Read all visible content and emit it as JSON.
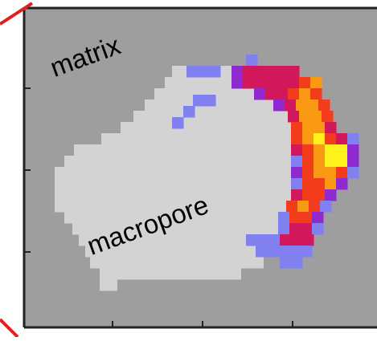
{
  "labels": {
    "matrix": "matrix",
    "macropore": "macropore"
  },
  "colors": {
    "background_region": "#9e9e9e",
    "macropore_region": "#d3d3d3",
    "frame": "#222222",
    "callout_line": "#e02020",
    "scale_low": "#8080f0",
    "scale_mid_low": "#8e2ad0",
    "scale_mid": "#d0185a",
    "scale_mid_high": "#f23c1c",
    "scale_high": "#fa9a14",
    "scale_max": "#fff21c"
  }
}
